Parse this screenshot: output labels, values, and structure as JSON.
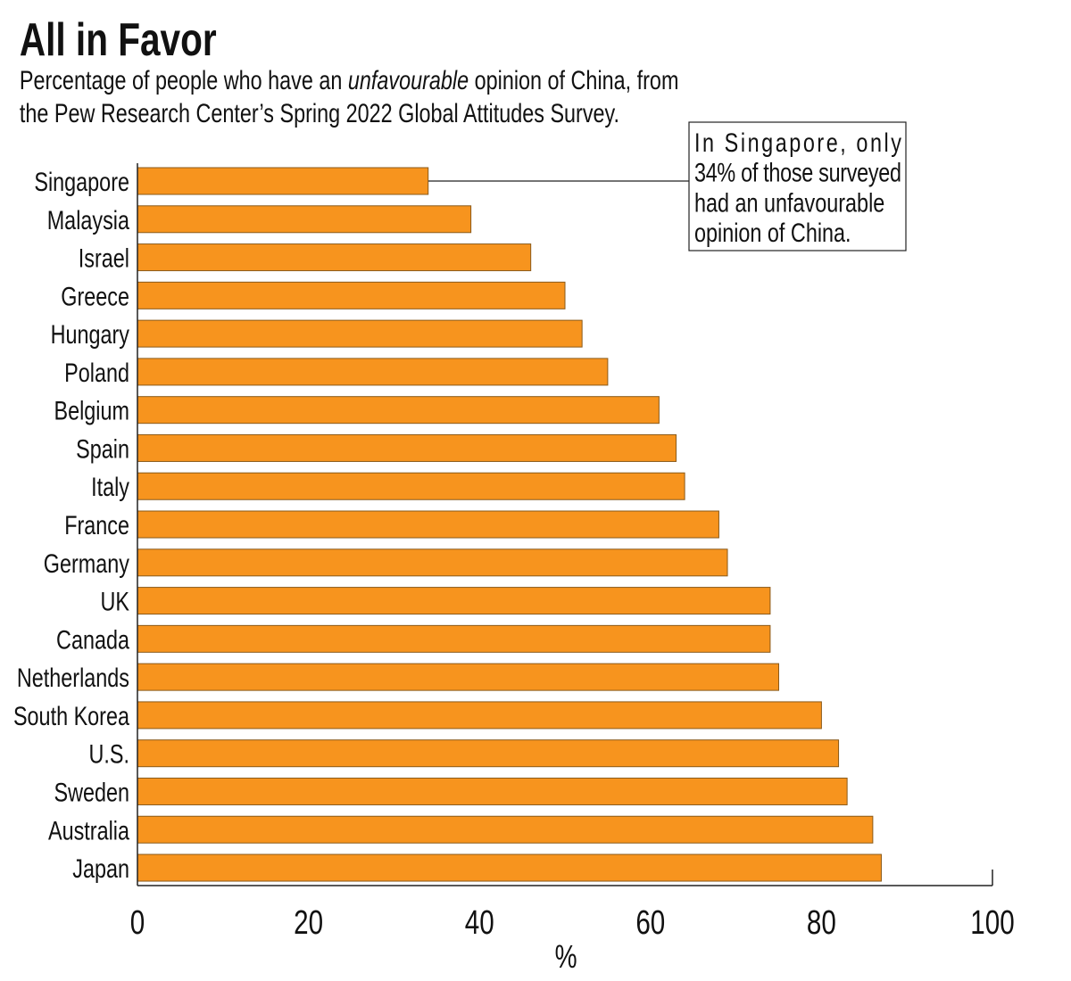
{
  "chart_data": {
    "type": "bar",
    "orientation": "horizontal",
    "title": "All in Favor",
    "subtitle_line1_pre": "Percentage of people who have an ",
    "subtitle_line1_em": "unfavourable",
    "subtitle_line1_post": " opinion of China, from",
    "subtitle_line2": "the Pew Research Center’s Spring 2022 Global Attitudes Survey.",
    "categories": [
      "Singapore",
      "Malaysia",
      "Israel",
      "Greece",
      "Hungary",
      "Poland",
      "Belgium",
      "Spain",
      "Italy",
      "France",
      "Germany",
      "UK",
      "Canada",
      "Netherlands",
      "South Korea",
      "U.S.",
      "Sweden",
      "Australia",
      "Japan"
    ],
    "values": [
      34,
      39,
      46,
      50,
      52,
      55,
      61,
      63,
      64,
      68,
      69,
      74,
      74,
      75,
      80,
      82,
      83,
      86,
      87
    ],
    "xlabel": "%",
    "xlim": [
      0,
      100
    ],
    "xticks": [
      "0",
      "20",
      "40",
      "60",
      "80",
      "100"
    ],
    "grid": false,
    "bar_color": "#F7941E",
    "annotation": {
      "target": "Singapore",
      "lines": [
        "In Singapore, only",
        "34% of those surveyed",
        "had an unfavourable",
        "opinion of China."
      ]
    }
  }
}
